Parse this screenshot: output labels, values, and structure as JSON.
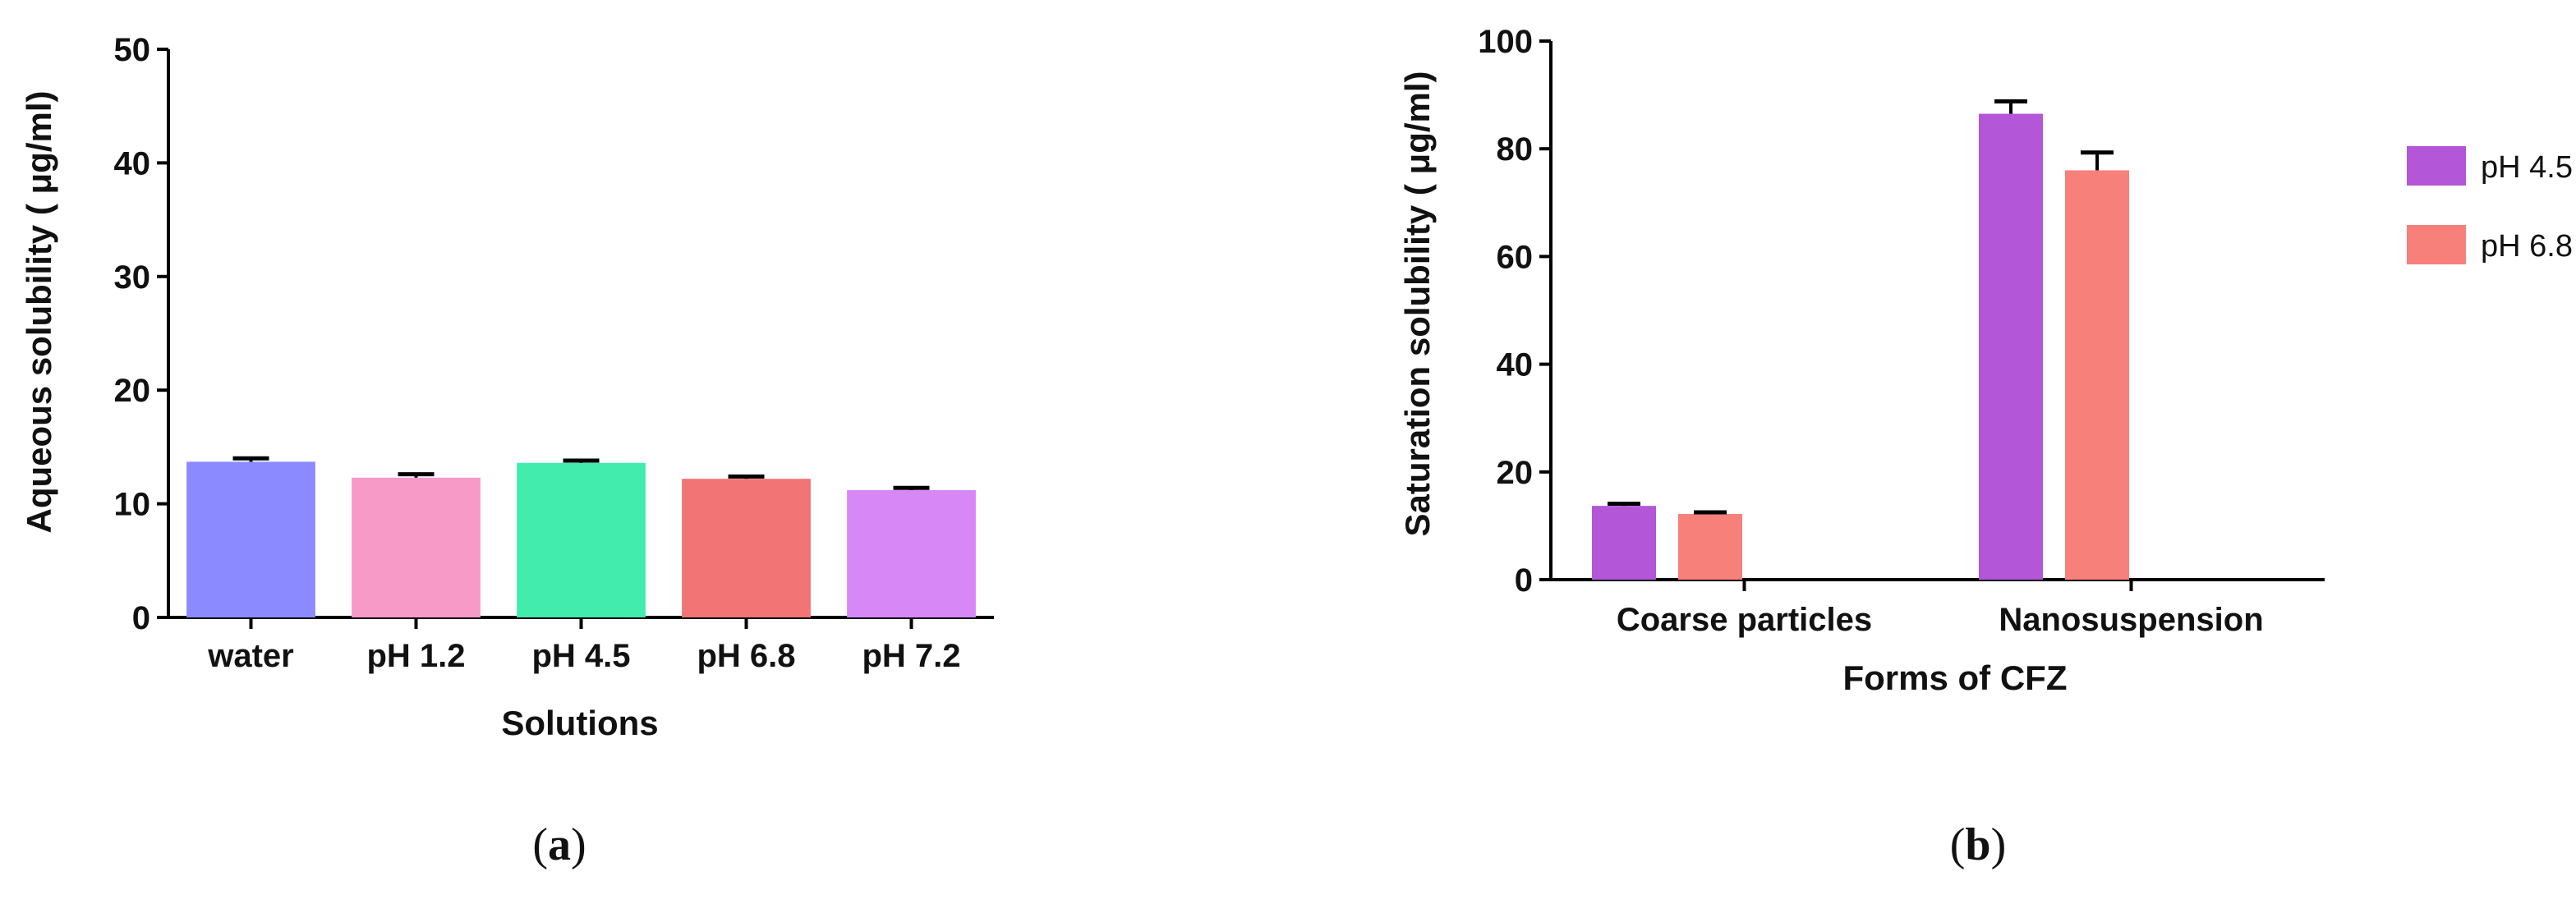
{
  "chart_data": [
    {
      "type": "bar",
      "panel_label": "a",
      "xlabel": "Solutions",
      "ylabel": "Aqueous solubility ( μg/ml)",
      "ylim": [
        0,
        50
      ],
      "yticks": [
        0,
        10,
        20,
        30,
        40,
        50
      ],
      "categories": [
        "water",
        "pH 1.2",
        "pH 4.5",
        "pH 6.8",
        "pH 7.2"
      ],
      "values": [
        13.7,
        12.3,
        13.6,
        12.2,
        11.2
      ],
      "errors": [
        0.3,
        0.3,
        0.2,
        0.2,
        0.2
      ],
      "colors": [
        "#8b8bff",
        "#f79ac8",
        "#41ecac",
        "#f27474",
        "#d888f6"
      ],
      "grid": false
    },
    {
      "type": "bar",
      "panel_label": "b",
      "xlabel": "Forms of CFZ",
      "ylabel": "Saturation solubility ( μg/ml)",
      "ylim": [
        0,
        100
      ],
      "yticks": [
        0,
        20,
        40,
        60,
        80,
        100
      ],
      "categories": [
        "Coarse particles",
        "Nanosuspension"
      ],
      "series": [
        {
          "name": "pH 4.5",
          "values": [
            13.7,
            86.5
          ],
          "errors": [
            0.4,
            2.3
          ],
          "color": "#b356d8"
        },
        {
          "name": "pH 6.8",
          "values": [
            12.2,
            76.0
          ],
          "errors": [
            0.3,
            3.3
          ],
          "color": "#f8807a"
        }
      ],
      "legend": "right",
      "grid": false
    }
  ]
}
